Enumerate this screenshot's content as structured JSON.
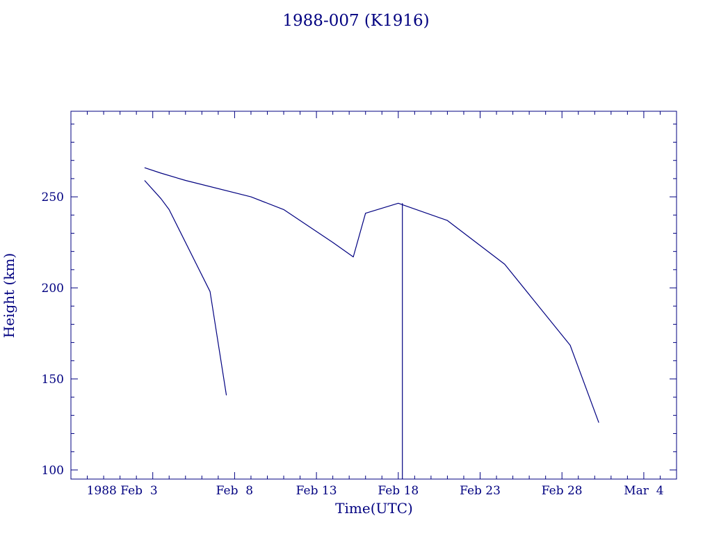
{
  "chart_data": {
    "type": "line",
    "title": "1988-007 (K1916)",
    "xlabel": "Time(UTC)",
    "ylabel": "Height (km)",
    "color": "#000080",
    "x_start_year": 1988,
    "xlim": [
      "1988-01-29",
      "1988-03-06"
    ],
    "ylim": [
      95,
      297
    ],
    "x_tick_labels": [
      {
        "date": "1988-02-03",
        "label": "1988 Feb  3"
      },
      {
        "date": "1988-02-08",
        "label": "Feb  8"
      },
      {
        "date": "1988-02-13",
        "label": "Feb 13"
      },
      {
        "date": "1988-02-18",
        "label": "Feb 18"
      },
      {
        "date": "1988-02-23",
        "label": "Feb 23"
      },
      {
        "date": "1988-02-28",
        "label": "Feb 28"
      },
      {
        "date": "1988-03-04",
        "label": "Mar  4"
      }
    ],
    "y_ticks": [
      100,
      150,
      200,
      250
    ],
    "series": [
      {
        "points": [
          [
            "1988-02-02T12:00",
            266
          ],
          [
            "1988-02-03T12:00",
            263
          ],
          [
            "1988-02-05T00:00",
            259
          ],
          [
            "1988-02-09T00:00",
            250
          ],
          [
            "1988-02-11T00:00",
            243
          ],
          [
            "1988-02-14T00:00",
            225
          ],
          [
            "1988-02-15T06:00",
            217
          ],
          [
            "1988-02-16T00:00",
            241
          ],
          [
            "1988-02-18T00:00",
            246.5
          ],
          [
            "1988-02-21T00:00",
            237
          ],
          [
            "1988-02-24T12:00",
            213
          ],
          [
            "1988-02-28T12:00",
            168.5
          ],
          [
            "1988-03-01T06:00",
            126
          ]
        ]
      },
      {
        "points": [
          [
            "1988-02-02T12:00",
            259
          ],
          [
            "1988-02-03T12:00",
            249
          ],
          [
            "1988-02-04T00:00",
            243
          ],
          [
            "1988-02-06T12:00",
            198
          ],
          [
            "1988-02-07T12:00",
            141
          ]
        ]
      }
    ],
    "markers": [
      {
        "date": "1988-02-18T06:00",
        "from": 95,
        "to": 246.5
      }
    ],
    "grid": false,
    "legend": "none"
  }
}
